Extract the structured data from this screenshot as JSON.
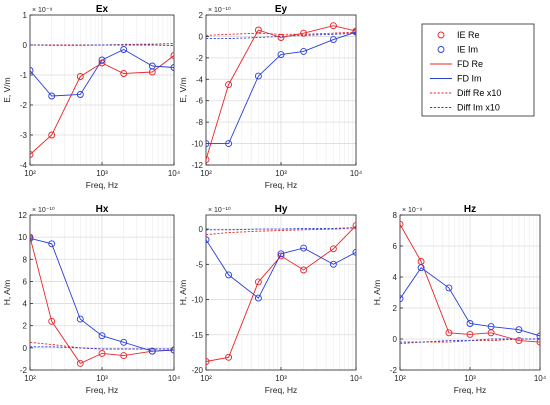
{
  "colors": {
    "re": "#e8262a",
    "im": "#2a3fd6"
  },
  "legend": {
    "items": [
      {
        "label": "IE Re",
        "style": "marker",
        "color": "#e8262a"
      },
      {
        "label": "IE Im",
        "style": "marker",
        "color": "#2a3fd6"
      },
      {
        "label": "FD Re",
        "style": "solid",
        "color": "#e8262a"
      },
      {
        "label": "FD Im",
        "style": "solid",
        "color": "#2a3fd6"
      },
      {
        "label": "Diff Re x10",
        "style": "dashed",
        "color": "#e8262a"
      },
      {
        "label": "Diff Im x10",
        "style": "dashed",
        "color": "#2a3fd6"
      }
    ]
  },
  "chart_data": [
    {
      "type": "line",
      "title": "Ex",
      "xlabel": "Freq, Hz",
      "ylabel": "E, V/m",
      "yexp": "× 10⁻⁹",
      "xscale": "log",
      "xlim": [
        100,
        10000
      ],
      "ylim": [
        -4,
        1
      ],
      "xticks": [
        "10²",
        "10³",
        "10⁴"
      ],
      "yticks": [
        "-4",
        "-3",
        "-2",
        "-1",
        "0",
        "1"
      ],
      "yticks_values": [
        -4,
        -3,
        -2,
        -1,
        0,
        1
      ],
      "x": [
        100,
        200,
        500,
        1000,
        2000,
        5000,
        10000
      ],
      "series": [
        {
          "name": "IE Re",
          "values": [
            -3.65,
            -3.0,
            -1.05,
            -0.6,
            -0.95,
            -0.9,
            -0.35
          ]
        },
        {
          "name": "IE Im",
          "values": [
            -0.85,
            -1.7,
            -1.65,
            -0.5,
            -0.15,
            -0.7,
            -0.75
          ]
        },
        {
          "name": "FD Re",
          "values": [
            -3.65,
            -3.0,
            -1.05,
            -0.6,
            -0.95,
            -0.9,
            -0.35
          ]
        },
        {
          "name": "FD Im",
          "values": [
            -0.85,
            -1.7,
            -1.65,
            -0.5,
            -0.15,
            -0.7,
            -0.75
          ]
        },
        {
          "name": "Diff Re x10",
          "values": [
            0.0,
            0.0,
            0.0,
            0.0,
            0.02,
            0.03,
            0.05
          ]
        },
        {
          "name": "Diff Im x10",
          "values": [
            0.0,
            -0.01,
            -0.01,
            0.0,
            0.0,
            0.0,
            -0.02
          ]
        }
      ]
    },
    {
      "type": "line",
      "title": "Ey",
      "xlabel": "Freq, Hz",
      "ylabel": "E, V/m",
      "yexp": "× 10⁻¹⁰",
      "xscale": "log",
      "xlim": [
        100,
        10000
      ],
      "ylim": [
        -12,
        2
      ],
      "xticks": [
        "10²",
        "10³",
        "10⁴"
      ],
      "yticks": [
        "-12",
        "-10",
        "-8",
        "-6",
        "-4",
        "-2",
        "0",
        "2"
      ],
      "yticks_values": [
        -12,
        -10,
        -8,
        -6,
        -4,
        -2,
        0,
        2
      ],
      "x": [
        100,
        200,
        500,
        1000,
        2000,
        5000,
        10000
      ],
      "series": [
        {
          "name": "IE Re",
          "values": [
            -11.5,
            -4.5,
            0.6,
            -0.1,
            0.3,
            1.0,
            0.5
          ]
        },
        {
          "name": "IE Im",
          "values": [
            -10.0,
            -10.0,
            -3.7,
            -1.7,
            -1.4,
            -0.3,
            0.4
          ]
        },
        {
          "name": "FD Re",
          "values": [
            -11.5,
            -4.5,
            0.6,
            -0.1,
            0.3,
            1.0,
            0.5
          ]
        },
        {
          "name": "FD Im",
          "values": [
            -10.0,
            -10.0,
            -3.7,
            -1.7,
            -1.4,
            -0.3,
            0.4
          ]
        },
        {
          "name": "Diff Re x10",
          "values": [
            0.1,
            0.2,
            0.3,
            0.2,
            0.2,
            0.3,
            0.4
          ]
        },
        {
          "name": "Diff Im x10",
          "values": [
            -0.2,
            -0.2,
            -0.1,
            0.0,
            0.1,
            0.2,
            0.3
          ]
        }
      ]
    },
    {
      "type": "line",
      "title": "Hx",
      "xlabel": "Freq, Hz",
      "ylabel": "H, A/m",
      "yexp": "× 10⁻¹⁰",
      "xscale": "log",
      "xlim": [
        100,
        10000
      ],
      "ylim": [
        -2,
        12
      ],
      "xticks": [
        "10²",
        "10³",
        "10⁴"
      ],
      "yticks": [
        "-2",
        "0",
        "2",
        "4",
        "6",
        "8",
        "10",
        "12"
      ],
      "yticks_values": [
        -2,
        0,
        2,
        4,
        6,
        8,
        10,
        12
      ],
      "x": [
        100,
        200,
        500,
        1000,
        2000,
        5000,
        10000
      ],
      "series": [
        {
          "name": "IE Re",
          "values": [
            10.0,
            2.4,
            -1.4,
            -0.5,
            -0.7,
            -0.3,
            -0.2
          ]
        },
        {
          "name": "IE Im",
          "values": [
            9.9,
            9.4,
            2.6,
            1.1,
            0.5,
            -0.3,
            -0.2
          ]
        },
        {
          "name": "FD Re",
          "values": [
            10.0,
            2.4,
            -1.4,
            -0.5,
            -0.7,
            -0.3,
            -0.2
          ]
        },
        {
          "name": "FD Im",
          "values": [
            9.9,
            9.4,
            2.6,
            1.1,
            0.5,
            -0.3,
            -0.2
          ]
        },
        {
          "name": "Diff Re x10",
          "values": [
            0.5,
            0.3,
            0.0,
            -0.1,
            -0.1,
            -0.1,
            -0.1
          ]
        },
        {
          "name": "Diff Im x10",
          "values": [
            0.1,
            0.1,
            0.0,
            -0.1,
            -0.1,
            -0.1,
            -0.1
          ]
        }
      ]
    },
    {
      "type": "line",
      "title": "Hy",
      "xlabel": "Freq, Hz",
      "ylabel": "H, A/m",
      "yexp": "× 10⁻¹⁰",
      "xscale": "log",
      "xlim": [
        100,
        10000
      ],
      "ylim": [
        -20,
        2
      ],
      "xticks": [
        "10²",
        "10³",
        "10⁴"
      ],
      "yticks": [
        "-20",
        "-15",
        "-10",
        "-5",
        "0"
      ],
      "yticks_values": [
        -20,
        -15,
        -10,
        -5,
        0
      ],
      "x": [
        100,
        200,
        500,
        1000,
        2000,
        5000,
        10000
      ],
      "series": [
        {
          "name": "IE Re",
          "values": [
            -18.8,
            -18.2,
            -7.5,
            -3.8,
            -5.8,
            -2.8,
            0.5
          ]
        },
        {
          "name": "IE Im",
          "values": [
            -1.5,
            -6.5,
            -9.8,
            -3.5,
            -2.7,
            -5.0,
            -3.3
          ]
        },
        {
          "name": "FD Re",
          "values": [
            -18.8,
            -18.2,
            -7.5,
            -3.8,
            -5.8,
            -2.8,
            0.5
          ]
        },
        {
          "name": "FD Im",
          "values": [
            -1.5,
            -6.5,
            -9.8,
            -3.5,
            -2.7,
            -5.0,
            -3.3
          ]
        },
        {
          "name": "Diff Re x10",
          "values": [
            -0.8,
            -0.5,
            -0.3,
            -0.2,
            -0.1,
            0.0,
            0.2
          ]
        },
        {
          "name": "Diff Im x10",
          "values": [
            -0.1,
            -0.1,
            0.0,
            0.0,
            0.1,
            0.1,
            0.2
          ]
        }
      ]
    },
    {
      "type": "line",
      "title": "Hz",
      "xlabel": "Freq, Hz",
      "ylabel": "H, A/m",
      "yexp": "× 10⁻⁹",
      "xscale": "log",
      "xlim": [
        100,
        10000
      ],
      "ylim": [
        -2,
        8
      ],
      "xticks": [
        "10²",
        "10³",
        "10⁴"
      ],
      "yticks": [
        "-2",
        "0",
        "2",
        "4",
        "6",
        "8"
      ],
      "yticks_values": [
        -2,
        0,
        2,
        4,
        6,
        8
      ],
      "x": [
        100,
        200,
        500,
        1000,
        2000,
        5000,
        10000
      ],
      "series": [
        {
          "name": "IE Re",
          "values": [
            7.4,
            5.0,
            0.4,
            0.3,
            0.4,
            -0.1,
            -0.2
          ]
        },
        {
          "name": "IE Im",
          "values": [
            2.6,
            4.6,
            3.3,
            1.0,
            0.8,
            0.6,
            0.2
          ]
        },
        {
          "name": "FD Re",
          "values": [
            7.4,
            5.0,
            0.4,
            0.3,
            0.4,
            -0.1,
            -0.2
          ]
        },
        {
          "name": "FD Im",
          "values": [
            2.6,
            4.6,
            3.3,
            1.0,
            0.8,
            0.6,
            0.2
          ]
        },
        {
          "name": "Diff Re x10",
          "values": [
            -0.3,
            -0.2,
            -0.2,
            -0.1,
            -0.1,
            0.0,
            0.0
          ]
        },
        {
          "name": "Diff Im x10",
          "values": [
            -0.2,
            -0.2,
            -0.1,
            -0.1,
            0.0,
            0.0,
            0.0
          ]
        }
      ]
    }
  ]
}
